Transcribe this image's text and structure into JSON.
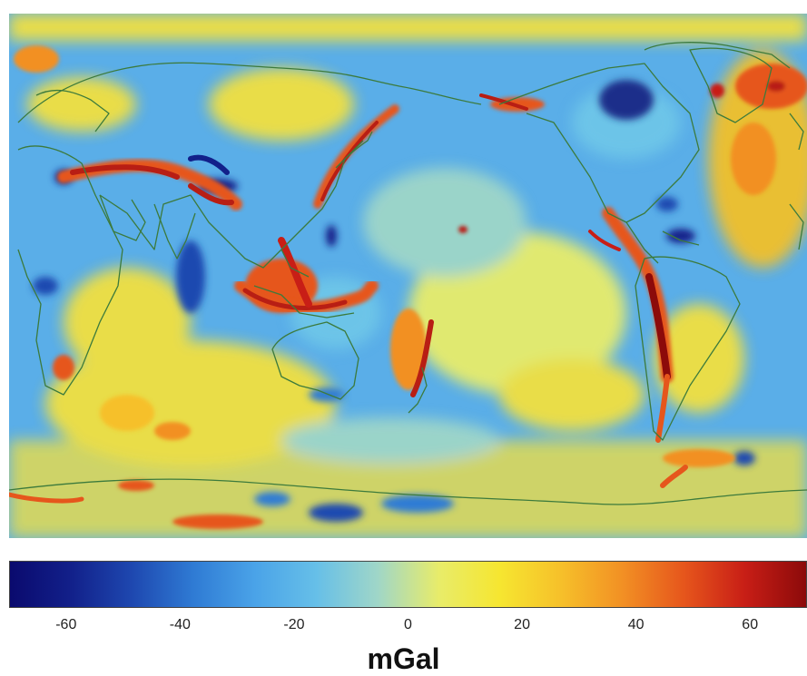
{
  "map": {
    "colors": {
      "ocean_base": "#5aaee8",
      "coast": "#3c7a3c",
      "strong_positive": "#b81e14",
      "positive": "#e8601c",
      "mild_positive": "#f2d02a",
      "mild_negative": "#6ec6e8",
      "strong_negative": "#1a2f8a"
    }
  },
  "colorbar": {
    "min": -70,
    "max": 70,
    "stops": [
      "#0a0a6e",
      "#12208a",
      "#1e48b0",
      "#2f7bd4",
      "#4aa3e8",
      "#66bfe8",
      "#9fd6c8",
      "#e8ec6a",
      "#f6e630",
      "#f6c02a",
      "#f29024",
      "#e6561c",
      "#c81e16",
      "#8c0a0a"
    ],
    "ticks": [
      {
        "value": -60,
        "label": "-60"
      },
      {
        "value": -40,
        "label": "-40"
      },
      {
        "value": -20,
        "label": "-20"
      },
      {
        "value": 0,
        "label": "0"
      },
      {
        "value": 20,
        "label": "20"
      },
      {
        "value": 40,
        "label": "40"
      },
      {
        "value": 60,
        "label": "60"
      }
    ],
    "unit": "mGal"
  }
}
